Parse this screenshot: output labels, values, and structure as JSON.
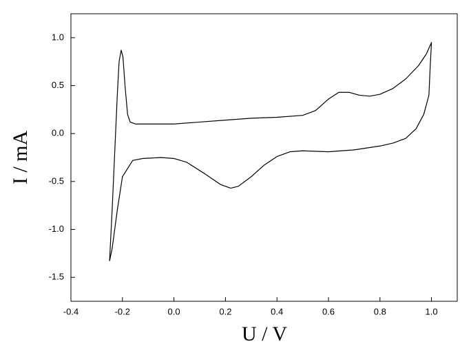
{
  "chart_data": {
    "type": "line",
    "xlabel": "U / V",
    "ylabel": "I / mA",
    "x": [
      -0.25,
      -0.24,
      -0.23,
      -0.22,
      -0.213,
      -0.205,
      -0.198,
      -0.19,
      -0.18,
      -0.17,
      -0.15,
      -0.1,
      0.0,
      0.1,
      0.2,
      0.3,
      0.4,
      0.5,
      0.55,
      0.6,
      0.64,
      0.68,
      0.72,
      0.76,
      0.8,
      0.85,
      0.9,
      0.95,
      0.98,
      1.0,
      0.995,
      0.99,
      0.97,
      0.94,
      0.9,
      0.85,
      0.8,
      0.7,
      0.6,
      0.5,
      0.45,
      0.4,
      0.35,
      0.3,
      0.25,
      0.22,
      0.18,
      0.12,
      0.05,
      0.0,
      -0.05,
      -0.12,
      -0.16,
      -0.2,
      -0.22,
      -0.24,
      -0.25
    ],
    "series": [
      {
        "color": "#000000",
        "values": [
          -1.33,
          -0.8,
          -0.2,
          0.4,
          0.75,
          0.87,
          0.8,
          0.5,
          0.2,
          0.12,
          0.1,
          0.1,
          0.1,
          0.12,
          0.14,
          0.16,
          0.17,
          0.19,
          0.24,
          0.36,
          0.43,
          0.43,
          0.4,
          0.39,
          0.41,
          0.47,
          0.57,
          0.71,
          0.83,
          0.95,
          0.7,
          0.4,
          0.2,
          0.05,
          -0.05,
          -0.1,
          -0.13,
          -0.17,
          -0.19,
          -0.18,
          -0.19,
          -0.24,
          -0.33,
          -0.45,
          -0.55,
          -0.57,
          -0.53,
          -0.42,
          -0.3,
          -0.26,
          -0.25,
          -0.26,
          -0.28,
          -0.45,
          -0.8,
          -1.2,
          -1.33
        ]
      }
    ],
    "xlim": [
      -0.4,
      1.1
    ],
    "xticks": [
      -0.4,
      -0.2,
      {
        "value": 0,
        "label": "0.0"
      },
      0.2,
      0.4,
      0.6,
      0.8,
      {
        "value": 1,
        "label": "1.0"
      }
    ],
    "ylim": [
      -1.75,
      1.25
    ],
    "yticks": [
      -1.5,
      {
        "value": -1,
        "label": "-1.0"
      },
      -0.5,
      {
        "value": 0,
        "label": "0.0"
      },
      0.5,
      {
        "value": 1,
        "label": "1.0"
      }
    ]
  }
}
